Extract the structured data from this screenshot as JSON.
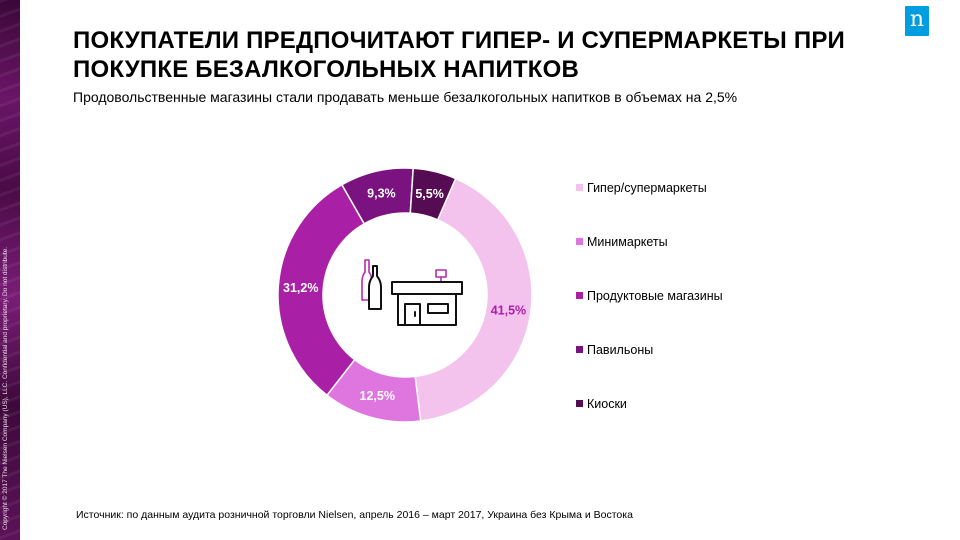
{
  "title": "ПОКУПАТЕЛИ ПРЕДПОЧИТАЮТ ГИПЕР- И СУПЕРМАРКЕТЫ ПРИ ПОКУПКЕ БЕЗАЛКОГОЛЬНЫХ НАПИТКОВ",
  "subtitle": "Продовольственные магазины стали продавать меньше безалкогольных напитков в объемах на 2,5%",
  "copyright": "Copyright © 2017 The Nielsen Company (US), LLC. Confidential and proprietary. Do not distribute.",
  "logo_letter": "n",
  "source": "Источник: по данным аудита розничной торговли Nielsen, апрель 2016 – март 2017, Украина без Крыма и Востока",
  "colors": {
    "logo": "#009de0",
    "side_strip": "#5c1258"
  },
  "chart_data": {
    "type": "pie",
    "donut": true,
    "categories": [
      "Гипер/супермаркеты",
      "Минимаркеты",
      "Продуктовые  магазины",
      "Павильоны",
      "Киоски"
    ],
    "values": [
      41.5,
      12.5,
      31.2,
      9.3,
      5.5
    ],
    "labels": [
      "41,5%",
      "12,5%",
      "31,2%",
      "9,3%",
      "5,5%"
    ],
    "colors": [
      "#f4c3ed",
      "#df76e0",
      "#a91fa6",
      "#7a1280",
      "#560c52"
    ],
    "label_colors": [
      "#a91fa6",
      "#ffffff",
      "#ffffff",
      "#ffffff",
      "#ffffff"
    ],
    "legend_position": "right",
    "center_icon": "shop-with-bottles-icon"
  }
}
